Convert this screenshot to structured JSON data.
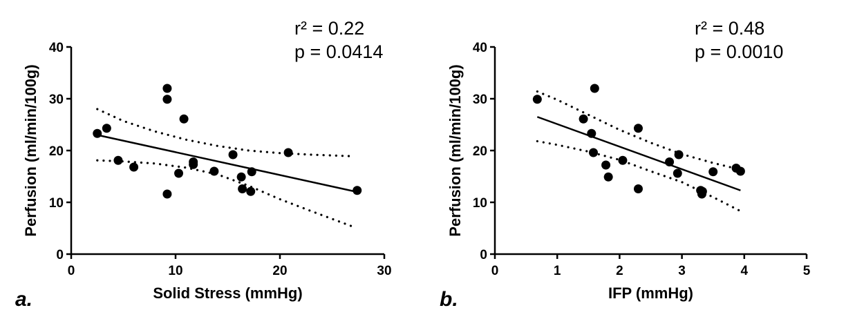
{
  "chart_data": [
    {
      "type": "scatter",
      "panel_label": "a.",
      "xlabel": "Solid Stress (mmHg)",
      "ylabel": "Perfusion (ml/min/100g)",
      "xlim": [
        0,
        30
      ],
      "ylim": [
        0,
        40
      ],
      "xticks": [
        0,
        10,
        20,
        30
      ],
      "yticks": [
        0,
        10,
        20,
        30,
        40
      ],
      "annotations": [
        "r² = 0.22",
        "p = 0.0414"
      ],
      "x": [
        2.5,
        3.4,
        4.5,
        6.0,
        9.2,
        9.2,
        9.2,
        10.3,
        10.8,
        11.7,
        11.7,
        13.7,
        15.5,
        16.3,
        16.4,
        17.3,
        17.2,
        20.8,
        27.4
      ],
      "y": [
        23.3,
        24.3,
        18.1,
        16.8,
        32.0,
        29.9,
        11.6,
        15.6,
        26.1,
        17.8,
        17.3,
        16.0,
        19.2,
        14.9,
        12.6,
        15.9,
        12.1,
        19.6,
        12.3
      ],
      "fit_line": {
        "x": [
          2.5,
          27.4
        ],
        "y": [
          23.0,
          12.0
        ]
      },
      "ci_upper": {
        "x": [
          2.5,
          5,
          8,
          11,
          14,
          17,
          20,
          23,
          27
        ],
        "y": [
          28.0,
          25.7,
          23.7,
          22.1,
          20.9,
          20.0,
          19.5,
          19.2,
          18.9
        ]
      },
      "ci_lower": {
        "x": [
          2.5,
          5,
          8,
          11,
          14,
          17,
          20,
          23,
          27
        ],
        "y": [
          18.1,
          17.9,
          17.5,
          16.7,
          15.4,
          13.2,
          10.6,
          8.3,
          5.3
        ]
      }
    },
    {
      "type": "scatter",
      "panel_label": "b.",
      "xlabel": "IFP (mmHg)",
      "ylabel": "Perfusion (ml/min/100g)",
      "xlim": [
        0,
        5
      ],
      "ylim": [
        0,
        40
      ],
      "xticks": [
        0,
        1,
        2,
        3,
        4,
        5
      ],
      "yticks": [
        0,
        10,
        20,
        30,
        40
      ],
      "annotations": [
        "r² = 0.48",
        "p = 0.0010"
      ],
      "x": [
        0.68,
        1.42,
        1.55,
        1.58,
        1.6,
        1.78,
        1.82,
        2.05,
        2.3,
        2.3,
        2.8,
        2.95,
        2.93,
        3.3,
        3.32,
        3.33,
        3.5,
        3.87,
        3.94
      ],
      "y": [
        29.9,
        26.1,
        23.3,
        19.6,
        32.0,
        17.2,
        14.9,
        18.1,
        24.3,
        12.6,
        17.8,
        19.2,
        15.6,
        12.3,
        11.6,
        12.1,
        15.9,
        16.6,
        16.0
      ],
      "fit_line": {
        "x": [
          0.68,
          3.94
        ],
        "y": [
          26.5,
          12.3
        ]
      },
      "ci_upper": {
        "x": [
          0.68,
          1.0,
          1.5,
          2.0,
          2.5,
          3.0,
          3.5,
          3.94
        ],
        "y": [
          31.4,
          29.8,
          26.9,
          24.0,
          21.5,
          19.3,
          17.6,
          16.3
        ]
      },
      "ci_lower": {
        "x": [
          0.68,
          1.0,
          1.5,
          2.0,
          2.5,
          3.0,
          3.5,
          3.94
        ],
        "y": [
          21.8,
          21.1,
          19.8,
          18.2,
          16.0,
          13.9,
          11.0,
          8.3
        ]
      }
    }
  ]
}
